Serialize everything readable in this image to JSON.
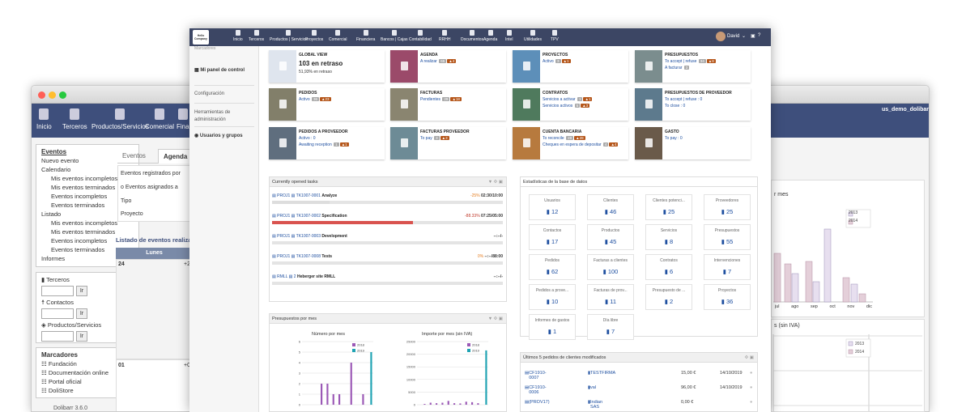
{
  "back_window": {
    "nav": [
      "Inicio",
      "Terceros",
      "Productos/Servicios",
      "Comercial",
      "Fina"
    ],
    "user": "us_demo_dolibarr",
    "menu_sections": [
      {
        "title": "Eventos",
        "items": [
          {
            "l": "Nuevo evento",
            "lvl": 1
          },
          {
            "l": "Calendario",
            "lvl": 1
          },
          {
            "l": "Mis eventos incompletos",
            "lvl": 2
          },
          {
            "l": "Mis eventos terminados",
            "lvl": 2
          },
          {
            "l": "Eventos incompletos",
            "lvl": 2
          },
          {
            "l": "Eventos terminados",
            "lvl": 2
          },
          {
            "l": "Listado",
            "lvl": 1
          },
          {
            "l": "Mis eventos incompletos",
            "lvl": 2
          },
          {
            "l": "Mis eventos terminados",
            "lvl": 2
          },
          {
            "l": "Eventos incompletos",
            "lvl": 2
          },
          {
            "l": "Eventos terminados",
            "lvl": 2
          },
          {
            "l": "Informes",
            "lvl": 1
          }
        ]
      }
    ],
    "search": {
      "terceros": "Terceros",
      "contactos": "Contactos",
      "productos": "Productos/Servicios",
      "btn": "Ir"
    },
    "bookmarks": {
      "title": "Marcadores",
      "items": [
        "Fundación",
        "Documentación online",
        "Portal oficial",
        "DoliStore"
      ]
    },
    "version": "Dolibarr 3.6.0",
    "tabs": [
      "Eventos",
      "Agenda"
    ],
    "filters": [
      "Eventos registrados por",
      "o Eventos asignados a",
      "Tipo",
      "Proyecto"
    ],
    "list_title": "Listado de eventos realizados",
    "cal_head": "Lunes",
    "cal_days": [
      "24",
      "01"
    ],
    "right_chart_title": "r mes",
    "right_chart2_title": "s (sin IVA)",
    "right_months": [
      "jul",
      "ago",
      "sep",
      "oct",
      "nov",
      "dic"
    ],
    "legend": [
      "2013",
      "2014"
    ]
  },
  "main": {
    "logo": "Hello Company",
    "nav": [
      "Inicio",
      "Terceros",
      "Productos | Servicios",
      "Proyectos",
      "Comercial",
      "Financiera",
      "Bancos | Cajas",
      "Contabilidad",
      "RRHH",
      "Documentos",
      "Agenda",
      "Intel",
      "Utilidades",
      "TPV"
    ],
    "user": "David",
    "side": [
      "Marcadores",
      "Mi panel de control",
      "Configuración",
      "Herramientas de administración",
      "Usuarios y grupos"
    ],
    "cards": [
      {
        "title": "GLOBAL VIEW",
        "l1": "103 en retraso",
        "l2": "51,93% en retraso",
        "color": "#ffffff"
      },
      {
        "title": "AGENDA",
        "l1": "A realizar",
        "b1": "65",
        "b2": "4",
        "color": "#9b4a6a"
      },
      {
        "title": "PROYECTOS",
        "l1": "Activo",
        "b1": "3",
        "b2": "1",
        "color": "#5d8fb9"
      },
      {
        "title": "PRESUPUESTOS",
        "l1": "To accept | refuse",
        "b1": "34",
        "b2": "8",
        "l2": "A facturar",
        "b3": "3",
        "color": "#7b8d8e"
      },
      {
        "title": "PEDIDOS",
        "l1": "Activo",
        "b1": "36",
        "b2": "23",
        "color": "#827f6a"
      },
      {
        "title": "FACTURAS",
        "l1": "Pendientes",
        "b1": "29",
        "b2": "18",
        "color": "#8a8570"
      },
      {
        "title": "CONTRATOS",
        "l1": "Servicios a activar",
        "b1": "1",
        "b2": "1",
        "l2": "Servicios activos",
        "b3": "5",
        "b4": "3",
        "color": "#4f7a5d"
      },
      {
        "title": "PRESUPUESTOS DE PROVEEDOR",
        "l1": "To accept | refuse : 0",
        "l2": "To close : 0",
        "color": "#5d7a8d"
      },
      {
        "title": "PEDIDOS A PROVEEDOR",
        "l1": "Activo : 0",
        "l2": "Awaiting reception",
        "b3": "1",
        "b4": "1",
        "color": "#5f6e7e"
      },
      {
        "title": "FACTURAS PROVEEDOR",
        "l1": "To pay",
        "b1": "3",
        "b2": "3",
        "color": "#6d8b96"
      },
      {
        "title": "CUENTA BANCARIA",
        "l1": "To reconcile",
        "b1": "28",
        "b2": "28",
        "l2": "Cheques en espera de depositar",
        "b3": "4",
        "b4": "4",
        "color": "#b77a3e"
      },
      {
        "title": "GASTO",
        "l1": "To pay : 0",
        "color": "#6a5a4a"
      }
    ],
    "tasks_title": "Currently opened tasks",
    "tasks": [
      {
        "p": "PROJ1",
        "t": "TK1007-0001",
        "name": "Analyze",
        "pct": "-25%",
        "time": "02:30/10:00",
        "fill": 0.25,
        "red": false
      },
      {
        "p": "PROJ1",
        "t": "TK1007-0002",
        "name": "Specification",
        "pct": "-88.33%",
        "time": "07:25/05:00",
        "fill": 0.61,
        "red": true
      },
      {
        "p": "PROJ1",
        "t": "TK1007-0003",
        "name": "Development",
        "pct": "",
        "time": "--:--/-",
        "fill": 0,
        "red": false
      },
      {
        "p": "PROJ1",
        "t": "TK1007-0008",
        "name": "Tests",
        "pct": "0%",
        "time": "--:--/88:00",
        "fill": 0,
        "red": false
      },
      {
        "p": "RMLL",
        "t": "2",
        "name": "Heberger site RMLL",
        "pct": "",
        "time": "--:--/-",
        "fill": 0,
        "red": false
      }
    ],
    "stats_title": "Estadísticas de la base de datos",
    "stats": [
      {
        "n": "Usuarios",
        "v": "12"
      },
      {
        "n": "Clientes",
        "v": "46"
      },
      {
        "n": "Clientes potenci...",
        "v": "25"
      },
      {
        "n": "Proveedores",
        "v": "25"
      },
      {
        "n": "Contactos",
        "v": "17"
      },
      {
        "n": "Productos",
        "v": "45"
      },
      {
        "n": "Servicios",
        "v": "8"
      },
      {
        "n": "Presupuestos",
        "v": "55"
      },
      {
        "n": "Pedidos",
        "v": "62"
      },
      {
        "n": "Facturas a clientes",
        "v": "100"
      },
      {
        "n": "Contratos",
        "v": "6"
      },
      {
        "n": "Intervenciones",
        "v": "7"
      },
      {
        "n": "Pedidos a prove...",
        "v": "10"
      },
      {
        "n": "Facturas de prov...",
        "v": "11"
      },
      {
        "n": "Presupuesto de ...",
        "v": "2"
      },
      {
        "n": "Proyectos",
        "v": "36"
      },
      {
        "n": "Informes de gastos",
        "v": "1"
      },
      {
        "n": "Día libre",
        "v": "7"
      }
    ],
    "budget_title": "Presupuestos por mes",
    "chart1": {
      "title": "Número por mes",
      "ticks": [
        "6",
        "5",
        "4",
        "3",
        "2",
        "1",
        "0"
      ]
    },
    "chart2": {
      "title": "Importe por mes (sin IVA)",
      "ticks": [
        "25000",
        "20000",
        "15000",
        "10000",
        "5000",
        "0"
      ]
    },
    "orders_title": "Últimos 5 pedidos de clientes modificados",
    "orders": [
      {
        "ref": "CF1910-0007",
        "cust": "TESTFIRMA",
        "amt": "15,00 €",
        "date": "14/10/2019"
      },
      {
        "ref": "CF1910-0006",
        "cust": "val",
        "amt": "96,00 €",
        "date": "14/10/2019"
      },
      {
        "ref": "(PROV17)",
        "cust": "Indian SAS",
        "amt": "0,00 €",
        "date": ""
      }
    ]
  },
  "chart_data": [
    {
      "type": "bar",
      "title": "Número por mes",
      "series": [
        {
          "name": "2018",
          "values": [
            0,
            0,
            0,
            2,
            2,
            1,
            1,
            0,
            4,
            0,
            1,
            0
          ]
        },
        {
          "name": "2019",
          "values": [
            0,
            0,
            0,
            0,
            0,
            0,
            0,
            0,
            0,
            0,
            0,
            5
          ]
        }
      ],
      "ylim": [
        0,
        6
      ]
    },
    {
      "type": "bar",
      "title": "Importe por mes (sin IVA)",
      "series": [
        {
          "name": "2018",
          "values": [
            0,
            300,
            800,
            600,
            800,
            1500,
            600,
            500,
            1200,
            1000,
            600,
            0
          ]
        },
        {
          "name": "2019",
          "values": [
            0,
            0,
            0,
            0,
            0,
            0,
            0,
            0,
            0,
            0,
            0,
            21500
          ]
        }
      ],
      "ylim": [
        0,
        25000
      ]
    }
  ],
  "colors": {
    "accent": "#3c4664",
    "legend_a": "#9b59b6",
    "legend_b": "#1fa3b3"
  }
}
